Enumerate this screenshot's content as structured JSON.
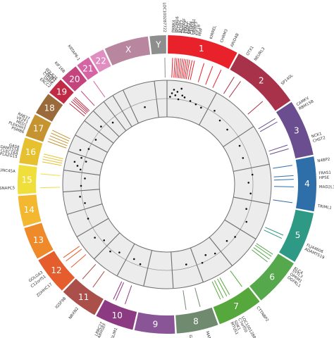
{
  "chart_data": {
    "type": "circos",
    "title": "",
    "chromosomes": [
      {
        "name": "1",
        "length": 249,
        "color": "#e8212b"
      },
      {
        "name": "2",
        "length": 243,
        "color": "#a8324a"
      },
      {
        "name": "3",
        "length": 198,
        "color": "#6a4e8f"
      },
      {
        "name": "4",
        "length": 191,
        "color": "#2f6fa9"
      },
      {
        "name": "5",
        "length": 181,
        "color": "#2e9a86"
      },
      {
        "name": "6",
        "length": 171,
        "color": "#55a84b"
      },
      {
        "name": "7",
        "length": 159,
        "color": "#56a83d"
      },
      {
        "name": "8",
        "length": 146,
        "color": "#708a70"
      },
      {
        "name": "9",
        "length": 141,
        "color": "#8a5597"
      },
      {
        "name": "10",
        "length": 135,
        "color": "#8c3a82"
      },
      {
        "name": "11",
        "length": 135,
        "color": "#aa4f4a"
      },
      {
        "name": "12",
        "length": 133,
        "color": "#e55d2c"
      },
      {
        "name": "13",
        "length": 115,
        "color": "#ef8a2a"
      },
      {
        "name": "14",
        "length": 107,
        "color": "#f3b830"
      },
      {
        "name": "15",
        "length": 102,
        "color": "#f0df3b"
      },
      {
        "name": "16",
        "length": 90,
        "color": "#e6c02f"
      },
      {
        "name": "17",
        "length": 81,
        "color": "#c59431"
      },
      {
        "name": "18",
        "length": 78,
        "color": "#9a6a3a"
      },
      {
        "name": "19",
        "length": 59,
        "color": "#c02a45"
      },
      {
        "name": "20",
        "length": 63,
        "color": "#c4447e"
      },
      {
        "name": "21",
        "length": 48,
        "color": "#d564a4"
      },
      {
        "name": "22",
        "length": 51,
        "color": "#e08dc2"
      },
      {
        "name": "X",
        "length": 155,
        "color": "#b8869f"
      },
      {
        "name": "Y",
        "length": 57,
        "color": "#8e8e8e"
      }
    ],
    "gene_labels": [
      {
        "chr": "1",
        "pos": 0.08,
        "text": "PANK4"
      },
      {
        "chr": "1",
        "pos": 0.12,
        "text": "PRDM16"
      },
      {
        "chr": "1",
        "pos": 0.15,
        "text": "PLCH2"
      },
      {
        "chr": "1",
        "pos": 0.18,
        "text": "ACOT7"
      },
      {
        "chr": "1",
        "pos": 0.21,
        "text": "TNFRSF"
      },
      {
        "chr": "1",
        "pos": 0.24,
        "text": "PRKCZ"
      },
      {
        "chr": "1",
        "pos": 0.27,
        "text": "AJAP1"
      },
      {
        "chr": "1",
        "pos": 0.3,
        "text": "NPHP4"
      },
      {
        "chr": "1",
        "pos": 0.33,
        "text": "CAMTA1"
      },
      {
        "chr": "1",
        "pos": 0.36,
        "text": "VAMP3"
      },
      {
        "chr": "1",
        "pos": 0.4,
        "text": "KIF1B"
      },
      {
        "chr": "1",
        "pos": 0.44,
        "text": "MIIP"
      },
      {
        "chr": "1",
        "pos": 0.6,
        "text": "KIRREL"
      },
      {
        "chr": "1",
        "pos": 0.75,
        "text": "CHRM3"
      },
      {
        "chr": "1",
        "pos": 0.9,
        "text": "ARID4B"
      },
      {
        "chr": "2",
        "pos": 0.12,
        "text": "OTX1"
      },
      {
        "chr": "2",
        "pos": 0.25,
        "text": "NEURL3"
      },
      {
        "chr": "2",
        "pos": 0.75,
        "text": "SP140L"
      },
      {
        "chr": "3",
        "pos": 0.1,
        "text": "CAMKV"
      },
      {
        "chr": "3",
        "pos": 0.18,
        "text": "RBM15B"
      },
      {
        "chr": "3",
        "pos": 0.7,
        "text": "NCK1"
      },
      {
        "chr": "3",
        "pos": 0.78,
        "text": "CHST2"
      },
      {
        "chr": "4",
        "pos": 0.1,
        "text": "N4BP2"
      },
      {
        "chr": "4",
        "pos": 0.32,
        "text": "FRAS1"
      },
      {
        "chr": "4",
        "pos": 0.4,
        "text": "HPSE"
      },
      {
        "chr": "4",
        "pos": 0.56,
        "text": "MAD2L1"
      },
      {
        "chr": "4",
        "pos": 0.9,
        "text": "TRIML1"
      },
      {
        "chr": "5",
        "pos": 0.62,
        "text": "FLJ44606"
      },
      {
        "chr": "5",
        "pos": 0.7,
        "text": "ADAMTS19"
      },
      {
        "chr": "6",
        "pos": 0.08,
        "text": "KLC4"
      },
      {
        "chr": "6",
        "pos": 0.14,
        "text": "SYTL3"
      },
      {
        "chr": "6",
        "pos": 0.22,
        "text": "OPRM1"
      },
      {
        "chr": "6",
        "pos": 0.3,
        "text": "OGFRL1"
      },
      {
        "chr": "7",
        "pos": 0.12,
        "text": "CTTNBP2"
      },
      {
        "chr": "7",
        "pos": 0.5,
        "text": "LOC100128822"
      },
      {
        "chr": "7",
        "pos": 0.58,
        "text": "C7orf50"
      },
      {
        "chr": "7",
        "pos": 0.68,
        "text": "SDK1"
      },
      {
        "chr": "7",
        "pos": 0.76,
        "text": "MTUS1"
      },
      {
        "chr": "8",
        "pos": 0.3,
        "text": "MATN2"
      },
      {
        "chr": "8",
        "pos": 0.7,
        "text": "GPR20"
      },
      {
        "chr": "10",
        "pos": 0.4,
        "text": "PDLIM1"
      },
      {
        "chr": "10",
        "pos": 0.7,
        "text": "ARHGEF"
      },
      {
        "chr": "10",
        "pos": 0.78,
        "text": "LRRC27"
      },
      {
        "chr": "11",
        "pos": 0.45,
        "text": "NRXN2"
      },
      {
        "chr": "11",
        "pos": 0.85,
        "text": "IGSF9B"
      },
      {
        "chr": "12",
        "pos": 0.3,
        "text": "ZDHHC17"
      },
      {
        "chr": "12",
        "pos": 0.55,
        "text": "C12orf51"
      },
      {
        "chr": "12",
        "pos": 0.68,
        "text": "GOLGA3"
      },
      {
        "chr": "15",
        "pos": 0.2,
        "text": "SNAPC5"
      },
      {
        "chr": "15",
        "pos": 0.75,
        "text": "UNC45A"
      },
      {
        "chr": "16",
        "pos": 0.2,
        "text": "PLA2G15"
      },
      {
        "chr": "16",
        "pos": 0.32,
        "text": "CLEC16A"
      },
      {
        "chr": "16",
        "pos": 0.44,
        "text": "ADAMTS18"
      },
      {
        "chr": "16",
        "pos": 0.56,
        "text": "GAS8"
      },
      {
        "chr": "17",
        "pos": 0.1,
        "text": "PSMB6"
      },
      {
        "chr": "17",
        "pos": 0.25,
        "text": "PLEKHH3"
      },
      {
        "chr": "17",
        "pos": 0.4,
        "text": "MED1"
      },
      {
        "chr": "17",
        "pos": 0.55,
        "text": "VEZF1"
      },
      {
        "chr": "17",
        "pos": 0.7,
        "text": "RAB37"
      },
      {
        "chr": "19",
        "pos": 0.25,
        "text": "ERCC2"
      },
      {
        "chr": "19",
        "pos": 0.45,
        "text": "DMPK"
      },
      {
        "chr": "19",
        "pos": 0.6,
        "text": "CYP4F2"
      },
      {
        "chr": "19",
        "pos": 0.72,
        "text": "CADM2"
      },
      {
        "chr": "19",
        "pos": 0.84,
        "text": "POLR2E"
      },
      {
        "chr": "20",
        "pos": 0.3,
        "text": "KIF16B"
      },
      {
        "chr": "21",
        "pos": 0.3,
        "text": "KRTAP6-1"
      },
      {
        "chr": "Y",
        "pos": 0.9,
        "text": "LOC100287722"
      }
    ],
    "mutation_marks": [
      {
        "chr": "1",
        "positions": [
          0.08,
          0.12,
          0.15,
          0.18,
          0.21,
          0.24,
          0.27,
          0.3,
          0.33,
          0.36,
          0.4,
          0.44,
          0.6,
          0.75,
          0.9
        ]
      },
      {
        "chr": "2",
        "positions": [
          0.12,
          0.25,
          0.75
        ]
      },
      {
        "chr": "3",
        "positions": [
          0.1,
          0.18,
          0.7,
          0.78
        ]
      },
      {
        "chr": "4",
        "positions": [
          0.1,
          0.32,
          0.4,
          0.56,
          0.9
        ]
      },
      {
        "chr": "5",
        "positions": [
          0.62,
          0.7
        ]
      },
      {
        "chr": "6",
        "positions": [
          0.08,
          0.14,
          0.22,
          0.3
        ]
      },
      {
        "chr": "7",
        "positions": [
          0.12,
          0.5,
          0.58,
          0.68,
          0.76
        ]
      },
      {
        "chr": "8",
        "positions": [
          0.3,
          0.7
        ]
      },
      {
        "chr": "10",
        "positions": [
          0.4,
          0.7,
          0.78
        ]
      },
      {
        "chr": "11",
        "positions": [
          0.45,
          0.85
        ]
      },
      {
        "chr": "12",
        "positions": [
          0.3,
          0.55,
          0.68
        ]
      },
      {
        "chr": "15",
        "positions": [
          0.2,
          0.75
        ]
      },
      {
        "chr": "16",
        "positions": [
          0.2,
          0.32,
          0.44,
          0.56
        ]
      },
      {
        "chr": "17",
        "positions": [
          0.1,
          0.25,
          0.4,
          0.55,
          0.7
        ]
      },
      {
        "chr": "19",
        "positions": [
          0.25,
          0.45,
          0.6,
          0.72,
          0.84
        ]
      },
      {
        "chr": "20",
        "positions": [
          0.3
        ]
      },
      {
        "chr": "21",
        "positions": [
          0.3
        ]
      },
      {
        "chr": "Y",
        "positions": [
          0.9
        ]
      }
    ],
    "scatter_track": {
      "ylim": [
        0,
        1
      ],
      "points": [
        {
          "chr": "1",
          "x": 0.06,
          "y": 0.55
        },
        {
          "chr": "1",
          "x": 0.1,
          "y": 0.65
        },
        {
          "chr": "1",
          "x": 0.14,
          "y": 0.75
        },
        {
          "chr": "1",
          "x": 0.18,
          "y": 0.6
        },
        {
          "chr": "1",
          "x": 0.22,
          "y": 0.7
        },
        {
          "chr": "1",
          "x": 0.26,
          "y": 0.5
        },
        {
          "chr": "1",
          "x": 0.3,
          "y": 0.8
        },
        {
          "chr": "1",
          "x": 0.34,
          "y": 0.62
        },
        {
          "chr": "1",
          "x": 0.4,
          "y": 0.58
        },
        {
          "chr": "1",
          "x": 0.55,
          "y": 0.52
        },
        {
          "chr": "1",
          "x": 0.7,
          "y": 0.48
        },
        {
          "chr": "1",
          "x": 0.85,
          "y": 0.45
        },
        {
          "chr": "2",
          "x": 0.15,
          "y": 0.55
        },
        {
          "chr": "2",
          "x": 0.4,
          "y": 0.42
        },
        {
          "chr": "2",
          "x": 0.7,
          "y": 0.38
        },
        {
          "chr": "3",
          "x": 0.25,
          "y": 0.4
        },
        {
          "chr": "3",
          "x": 0.65,
          "y": 0.35
        },
        {
          "chr": "4",
          "x": 0.2,
          "y": 0.5
        },
        {
          "chr": "4",
          "x": 0.45,
          "y": 0.38
        },
        {
          "chr": "4",
          "x": 0.8,
          "y": 0.45
        },
        {
          "chr": "5",
          "x": 0.3,
          "y": 0.42
        },
        {
          "chr": "5",
          "x": 0.7,
          "y": 0.55
        },
        {
          "chr": "6",
          "x": 0.3,
          "y": 0.5
        },
        {
          "chr": "6",
          "x": 0.6,
          "y": 0.4
        },
        {
          "chr": "7",
          "x": 0.2,
          "y": 0.45
        },
        {
          "chr": "7",
          "x": 0.55,
          "y": 0.35
        },
        {
          "chr": "7",
          "x": 0.8,
          "y": 0.5
        },
        {
          "chr": "8",
          "x": 0.4,
          "y": 0.4
        },
        {
          "chr": "10",
          "x": 0.35,
          "y": 0.45
        },
        {
          "chr": "10",
          "x": 0.7,
          "y": 0.38
        },
        {
          "chr": "11",
          "x": 0.4,
          "y": 0.42
        },
        {
          "chr": "11",
          "x": 0.75,
          "y": 0.55
        },
        {
          "chr": "12",
          "x": 0.25,
          "y": 0.45
        },
        {
          "chr": "12",
          "x": 0.6,
          "y": 0.6
        },
        {
          "chr": "13",
          "x": 0.5,
          "y": 0.5
        },
        {
          "chr": "14",
          "x": 0.3,
          "y": 0.45
        },
        {
          "chr": "14",
          "x": 0.7,
          "y": 0.55
        },
        {
          "chr": "15",
          "x": 0.25,
          "y": 0.5
        },
        {
          "chr": "15",
          "x": 0.7,
          "y": 0.4
        },
        {
          "chr": "16",
          "x": 0.15,
          "y": 0.55
        },
        {
          "chr": "16",
          "x": 0.35,
          "y": 0.65
        },
        {
          "chr": "16",
          "x": 0.55,
          "y": 0.75
        },
        {
          "chr": "16",
          "x": 0.75,
          "y": 0.45
        },
        {
          "chr": "16",
          "x": 0.9,
          "y": 0.6
        },
        {
          "chr": "17",
          "x": 0.3,
          "y": 0.7
        },
        {
          "chr": "17",
          "x": 0.6,
          "y": 0.5
        },
        {
          "chr": "18",
          "x": 0.4,
          "y": 0.45
        },
        {
          "chr": "19",
          "x": 0.5,
          "y": 0.55
        },
        {
          "chr": "20",
          "x": 0.5,
          "y": 0.4
        },
        {
          "chr": "X",
          "x": 0.5,
          "y": 0.35
        }
      ]
    },
    "grid": true
  }
}
